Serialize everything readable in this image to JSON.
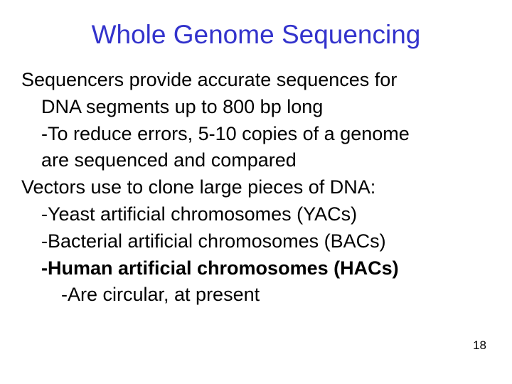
{
  "slide": {
    "title": "Whole Genome Sequencing",
    "title_color": "#3333cc",
    "title_fontsize": 37,
    "body_fontsize": 27,
    "body_color": "#000000",
    "background_color": "#ffffff",
    "lines": [
      {
        "text": "Sequencers provide accurate sequences for",
        "indent": 0,
        "bold": false
      },
      {
        "text": "DNA segments up to 800 bp long",
        "indent": 1,
        "bold": false
      },
      {
        "text": "-To reduce errors, 5-10 copies of a genome",
        "indent": 1,
        "bold": false
      },
      {
        "text": "are sequenced and compared",
        "indent": 1,
        "bold": false
      },
      {
        "text": "Vectors use to clone large pieces of DNA:",
        "indent": 0,
        "bold": false
      },
      {
        "text": "-Yeast artificial chromosomes (YACs)",
        "indent": 1,
        "bold": false
      },
      {
        "text": "-Bacterial artificial chromosomes (BACs)",
        "indent": 1,
        "bold": false
      },
      {
        "text": "-Human artificial chromosomes (HACs)",
        "indent": 1,
        "bold": true
      },
      {
        "text": "-Are circular, at present",
        "indent": 2,
        "bold": false
      }
    ],
    "page_number": "18",
    "page_number_fontsize": 17
  }
}
